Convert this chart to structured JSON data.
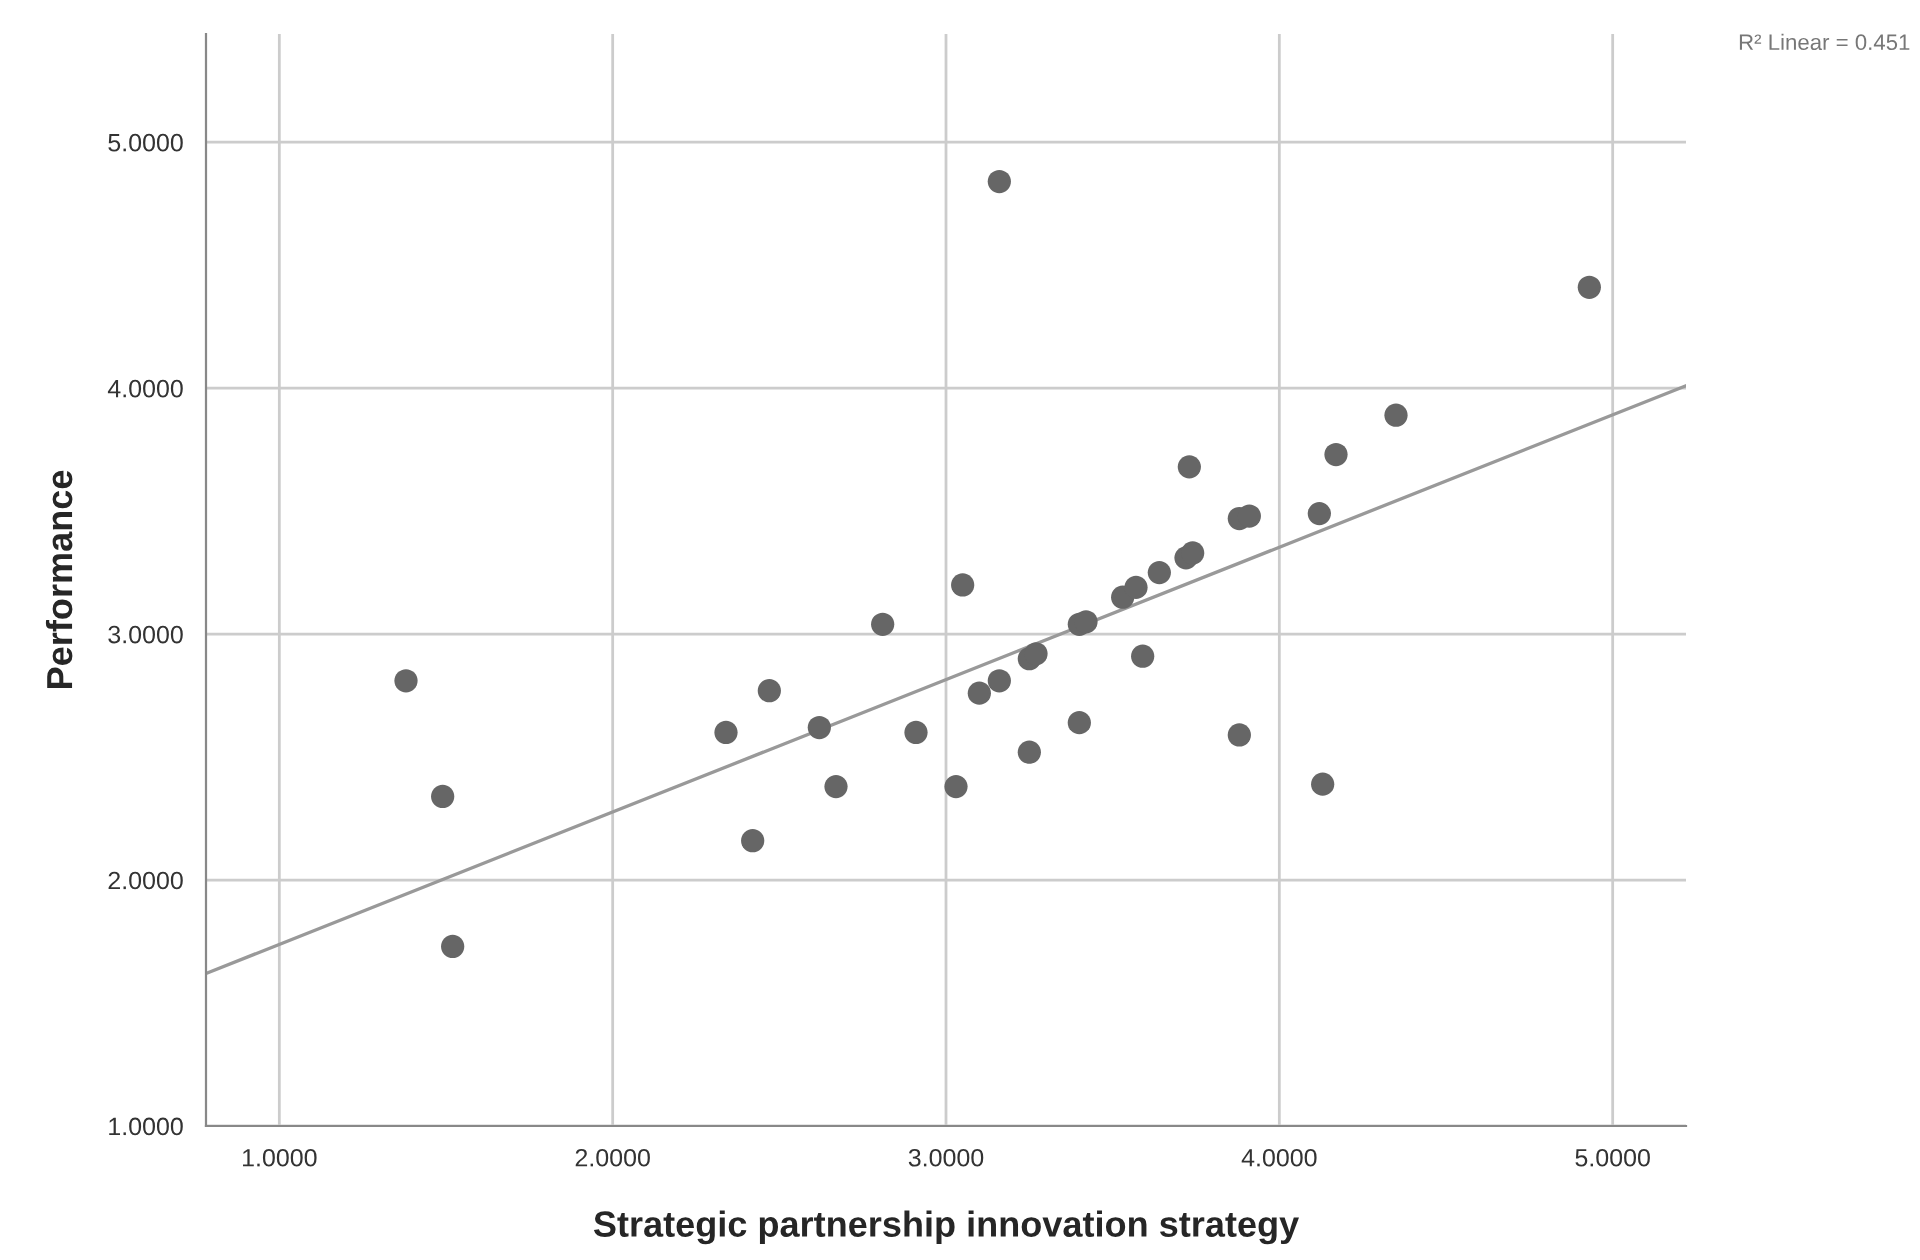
{
  "chart_data": {
    "type": "scatter",
    "xlabel": "Strategic partnership innovation strategy",
    "ylabel": "Performance",
    "annotations": [
      "R² Linear = 0.451"
    ],
    "series": [
      {
        "color": "#666666",
        "marker": "circle",
        "x": [
          1.38,
          1.49,
          1.52,
          2.34,
          2.42,
          2.47,
          2.62,
          2.67,
          2.81,
          2.91,
          3.03,
          3.05,
          3.1,
          3.16,
          3.16,
          3.25,
          3.27,
          3.25,
          3.4,
          3.42,
          3.4,
          3.53,
          3.57,
          3.59,
          3.64,
          3.72,
          3.74,
          3.73,
          3.88,
          3.91,
          3.88,
          4.12,
          4.13,
          4.17,
          4.35,
          4.93
        ],
        "values": [
          2.81,
          2.34,
          1.73,
          2.6,
          2.16,
          2.77,
          2.62,
          2.38,
          3.04,
          2.6,
          2.38,
          3.2,
          2.76,
          2.81,
          4.84,
          2.9,
          2.92,
          2.52,
          3.04,
          3.05,
          2.64,
          3.15,
          3.19,
          2.91,
          3.25,
          3.31,
          3.33,
          3.68,
          3.47,
          3.48,
          2.59,
          3.49,
          2.39,
          3.73,
          3.89,
          4.41
        ]
      },
      {
        "type": "line",
        "color": "#999999",
        "line_style": "solid",
        "x": [
          0.78,
          5.22
        ],
        "values": [
          1.62,
          4.01
        ]
      }
    ],
    "xlim": [
      0.78,
      5.22
    ],
    "ylim": [
      1.0,
      5.44
    ],
    "xticks": [
      {
        "value": 1,
        "label": "1.0000"
      },
      {
        "value": 2,
        "label": "2.0000"
      },
      {
        "value": 3,
        "label": "3.0000"
      },
      {
        "value": 4,
        "label": "4.0000"
      },
      {
        "value": 5,
        "label": "5.0000"
      }
    ],
    "yticks": [
      {
        "value": 1,
        "label": "1.0000"
      },
      {
        "value": 2,
        "label": "2.0000"
      },
      {
        "value": 3,
        "label": "3.0000"
      },
      {
        "value": 4,
        "label": "4.0000"
      },
      {
        "value": 5,
        "label": "5.0000"
      }
    ],
    "grid": true
  }
}
